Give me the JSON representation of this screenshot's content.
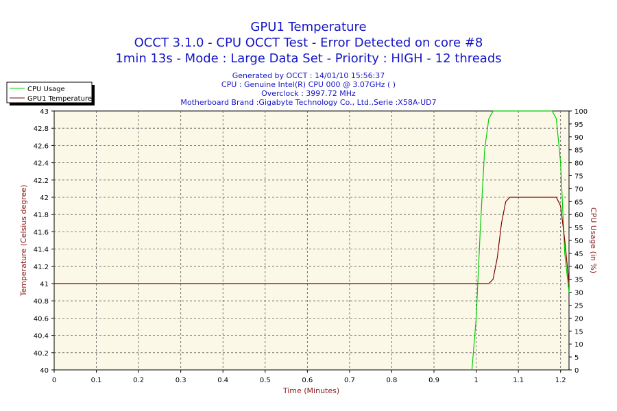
{
  "chart_data": {
    "type": "line",
    "title": "GPU1 Temperature",
    "subtitle_lines": [
      "OCCT 3.1.0 - CPU OCCT Test - Error Detected on core #8",
      "1min 13s - Mode : Large Data Set - Priority : HIGH - 12 threads"
    ],
    "info_lines": [
      "Generated by OCCT : 14/01/10 15:56:37",
      "CPU : Genuine Intel(R) CPU 000 @ 3.07GHz (  )",
      "Overclock : 3997.72 MHz",
      "Motherboard Brand :Gigabyte Technology Co., Ltd.,Serie :X58A-UD7"
    ],
    "xlabel": "Time (Minutes)",
    "ylabel_left": "Temperature (Celsius degree)",
    "ylabel_right": "CPU Usage (in %)",
    "xlim": [
      0,
      1.22
    ],
    "ylim_left": [
      40,
      43
    ],
    "ylim_right": [
      0,
      100
    ],
    "x_ticks": [
      "0",
      "0.1",
      "0.2",
      "0.3",
      "0.4",
      "0.5",
      "0.6",
      "0.7",
      "0.8",
      "0.9",
      "1",
      "1.1",
      "1.2"
    ],
    "y_left_ticks": [
      "40",
      "40.2",
      "40.4",
      "40.6",
      "40.8",
      "41",
      "41.2",
      "41.4",
      "41.6",
      "41.8",
      "42",
      "42.2",
      "42.4",
      "42.6",
      "42.8",
      "43"
    ],
    "y_right_ticks": [
      "0",
      "5",
      "10",
      "15",
      "20",
      "25",
      "30",
      "35",
      "40",
      "45",
      "50",
      "55",
      "60",
      "65",
      "70",
      "75",
      "80",
      "85",
      "90",
      "95",
      "100"
    ],
    "grid": true,
    "legend_position": "top-left",
    "series": [
      {
        "name": "CPU Usage",
        "axis": "right",
        "color": "#00cc00",
        "points": [
          [
            0.99,
            0
          ],
          [
            1.0,
            20
          ],
          [
            1.01,
            55
          ],
          [
            1.02,
            85
          ],
          [
            1.03,
            97
          ],
          [
            1.04,
            100
          ],
          [
            1.18,
            100
          ],
          [
            1.19,
            97
          ],
          [
            1.2,
            80
          ],
          [
            1.21,
            45
          ],
          [
            1.22,
            30
          ]
        ]
      },
      {
        "name": "GPU1 Temperature",
        "axis": "left",
        "color": "#800000",
        "points": [
          [
            0,
            41
          ],
          [
            1.03,
            41
          ],
          [
            1.04,
            41.05
          ],
          [
            1.05,
            41.3
          ],
          [
            1.06,
            41.7
          ],
          [
            1.07,
            41.95
          ],
          [
            1.08,
            42
          ],
          [
            1.19,
            42
          ],
          [
            1.2,
            41.9
          ],
          [
            1.21,
            41.5
          ],
          [
            1.22,
            41
          ]
        ]
      }
    ]
  },
  "colors": {
    "plot_background": "#fcf8e8",
    "title": "#1414c8",
    "axis_label": "#8b1a1a",
    "grid": "#555555"
  }
}
